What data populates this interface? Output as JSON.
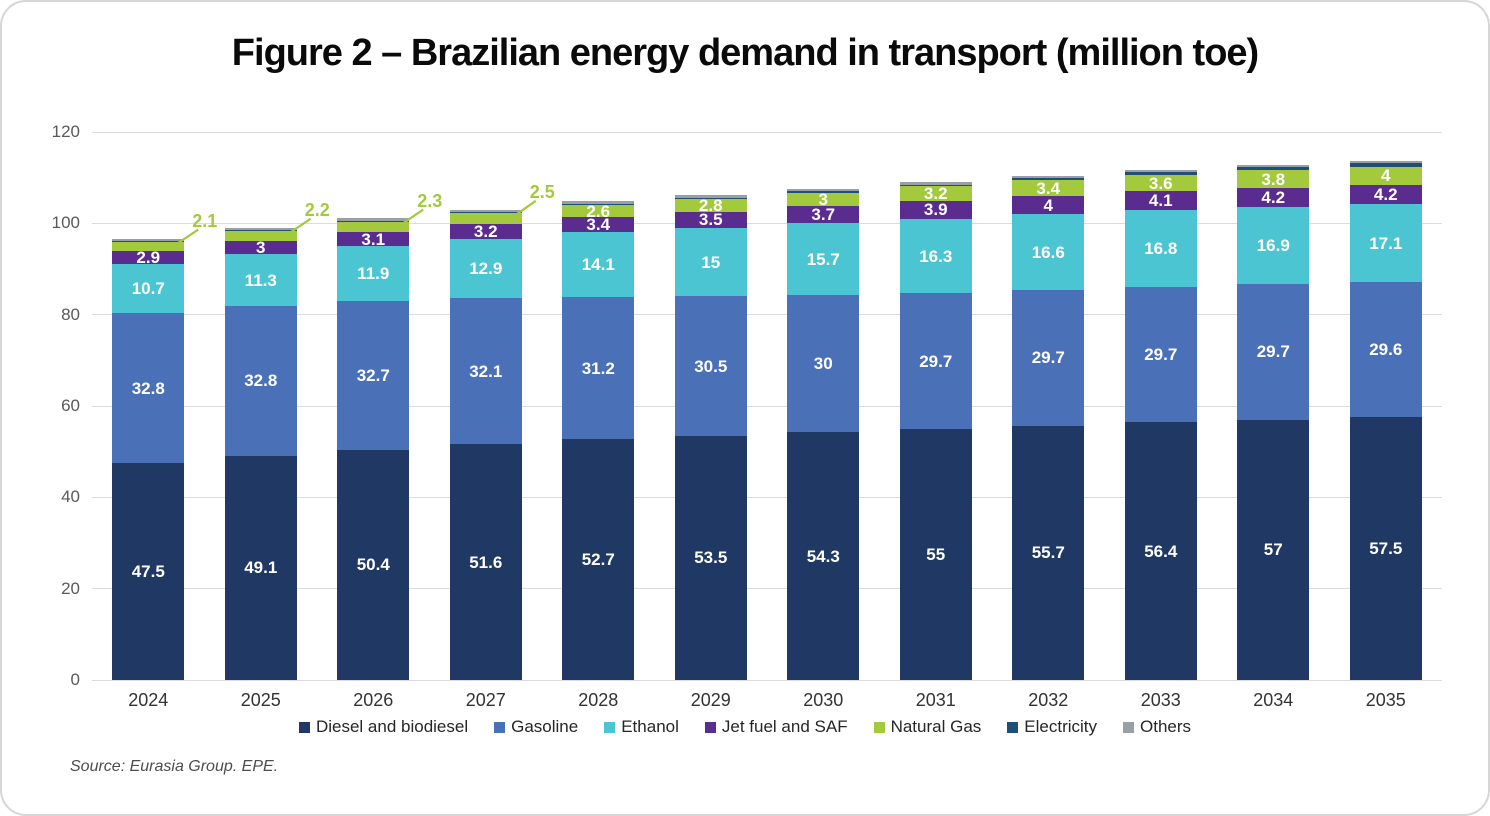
{
  "title": "Figure 2 – Brazilian energy demand in transport (million toe)",
  "source": "Source: Eurasia Group. EPE.",
  "chart_data": {
    "type": "bar",
    "stacked": true,
    "title": "Figure 2 – Brazilian energy demand in transport (million toe)",
    "unit": "million toe",
    "categories": [
      "2024",
      "2025",
      "2026",
      "2027",
      "2028",
      "2029",
      "2030",
      "2031",
      "2032",
      "2033",
      "2034",
      "2035"
    ],
    "ylim": [
      0,
      120
    ],
    "yticks": [
      0,
      20,
      40,
      60,
      80,
      100,
      120
    ],
    "grid": true,
    "legend_position": "bottom",
    "series": [
      {
        "name": "Diesel and biodiesel",
        "color": "#1f3864",
        "values": [
          47.5,
          49.1,
          50.4,
          51.6,
          52.7,
          53.5,
          54.3,
          55,
          55.7,
          56.4,
          57,
          57.5
        ],
        "labels": [
          "47.5",
          "49.1",
          "50.4",
          "51.6",
          "52.7",
          "53.5",
          "54.3",
          "55",
          "55.7",
          "56.4",
          "57",
          "57.5"
        ]
      },
      {
        "name": "Gasoline",
        "color": "#4a70b8",
        "values": [
          32.8,
          32.8,
          32.7,
          32.1,
          31.2,
          30.5,
          30,
          29.7,
          29.7,
          29.7,
          29.7,
          29.6
        ],
        "labels": [
          "32.8",
          "32.8",
          "32.7",
          "32.1",
          "31.2",
          "30.5",
          "30",
          "29.7",
          "29.7",
          "29.7",
          "29.7",
          "29.6"
        ]
      },
      {
        "name": "Ethanol",
        "color": "#4cc5d2",
        "values": [
          10.7,
          11.3,
          11.9,
          12.9,
          14.1,
          15,
          15.7,
          16.3,
          16.6,
          16.8,
          16.9,
          17.1
        ],
        "labels": [
          "10.7",
          "11.3",
          "11.9",
          "12.9",
          "14.1",
          "15",
          "15.7",
          "16.3",
          "16.6",
          "16.8",
          "16.9",
          "17.1"
        ]
      },
      {
        "name": "Jet fuel and SAF",
        "color": "#5b2c90",
        "values": [
          2.9,
          3,
          3.1,
          3.2,
          3.4,
          3.5,
          3.7,
          3.9,
          4,
          4.1,
          4.2,
          4.2
        ],
        "labels": [
          "2.9",
          "3",
          "3.1",
          "3.2",
          "3.4",
          "3.5",
          "3.7",
          "3.9",
          "4",
          "4.1",
          "4.2",
          "4.2"
        ]
      },
      {
        "name": "Natural Gas",
        "color": "#a3c93c",
        "values": [
          2.1,
          2.2,
          2.3,
          2.5,
          2.6,
          2.8,
          3,
          3.2,
          3.4,
          3.6,
          3.8,
          4
        ],
        "labels": [
          "2.1",
          "2.2",
          "2.3",
          "2.5",
          "2.6",
          "2.8",
          "3",
          "3.2",
          "3.4",
          "3.6",
          "3.8",
          "4"
        ],
        "callout_indices": [
          0,
          1,
          2,
          3
        ]
      },
      {
        "name": "Electricity",
        "color": "#1f4e79",
        "values": [
          0.1,
          0.1,
          0.2,
          0.2,
          0.3,
          0.3,
          0.4,
          0.4,
          0.5,
          0.6,
          0.7,
          0.8
        ],
        "estimated": true
      },
      {
        "name": "Others",
        "color": "#989fa6",
        "values": [
          0.5,
          0.5,
          0.5,
          0.5,
          0.5,
          0.5,
          0.5,
          0.5,
          0.5,
          0.5,
          0.5,
          0.5
        ],
        "estimated": true
      }
    ]
  }
}
